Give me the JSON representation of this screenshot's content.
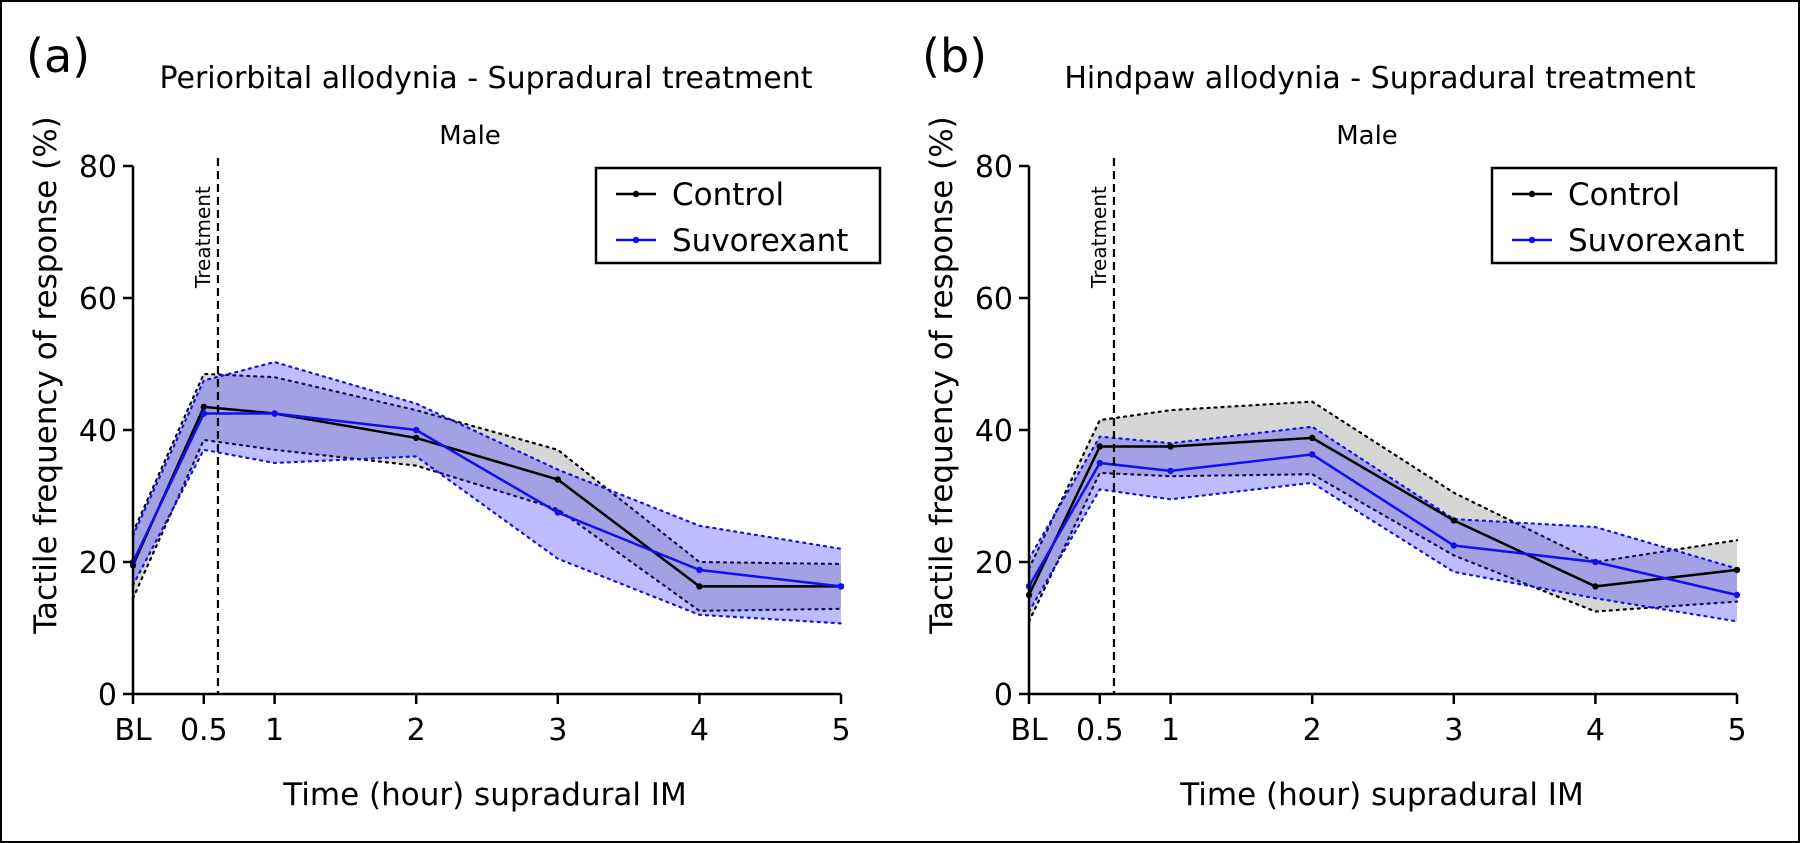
{
  "figure": {
    "border_color": "#000000"
  },
  "colors": {
    "control": "#000000",
    "suvorexant": "#1010f0",
    "control_band": "#7f7f7f",
    "suvorexant_band": "#3333ff"
  },
  "chart_data": [
    {
      "type": "line",
      "panel_label": "(a)",
      "title": "Periorbital allodynia - Supradural treatment",
      "subtitle": "Male",
      "xlabel": "Time (hour) supradural IM",
      "ylabel": "Tactile frequency of response (%)",
      "x": [
        0,
        0.5,
        1,
        2,
        3,
        4,
        5
      ],
      "xlim": [
        0,
        5
      ],
      "ylim": [
        0,
        80
      ],
      "x_ticks": [
        {
          "value": 0,
          "label": "BL"
        },
        {
          "value": 0.5,
          "label": "0.5"
        },
        {
          "value": 1,
          "label": "1"
        },
        {
          "value": 2,
          "label": "2"
        },
        {
          "value": 3,
          "label": "3"
        },
        {
          "value": 4,
          "label": "4"
        },
        {
          "value": 5,
          "label": "5"
        }
      ],
      "y_ticks": [
        0,
        20,
        40,
        60,
        80
      ],
      "treatment_x": 0.6,
      "treatment_label": "Treatment",
      "legend_position": "top-right",
      "series": [
        {
          "name": "Control",
          "key": "control",
          "values": [
            19.5,
            43.5,
            42.5,
            38.8,
            32.5,
            16.3,
            16.3
          ],
          "upper": [
            24.5,
            48.5,
            48.0,
            43.0,
            37.0,
            20.0,
            19.7
          ],
          "lower": [
            14.5,
            38.5,
            37.0,
            34.6,
            28.0,
            12.6,
            12.9
          ]
        },
        {
          "name": "Suvorexant",
          "key": "suvorexant",
          "values": [
            20.0,
            42.5,
            42.5,
            40.0,
            27.5,
            18.8,
            16.3
          ],
          "upper": [
            24.0,
            47.5,
            50.3,
            44.0,
            34.0,
            25.5,
            22.0
          ],
          "lower": [
            16.5,
            37.0,
            35.0,
            36.0,
            20.5,
            12.0,
            10.7
          ]
        }
      ]
    },
    {
      "type": "line",
      "panel_label": "(b)",
      "title": "Hindpaw allodynia - Supradural treatment",
      "subtitle": "Male",
      "xlabel": "Time (hour) supradural IM",
      "ylabel": "Tactile frequency of response (%)",
      "x": [
        0,
        0.5,
        1,
        2,
        3,
        4,
        5
      ],
      "xlim": [
        0,
        5
      ],
      "ylim": [
        0,
        80
      ],
      "x_ticks": [
        {
          "value": 0,
          "label": "BL"
        },
        {
          "value": 0.5,
          "label": "0.5"
        },
        {
          "value": 1,
          "label": "1"
        },
        {
          "value": 2,
          "label": "2"
        },
        {
          "value": 3,
          "label": "3"
        },
        {
          "value": 4,
          "label": "4"
        },
        {
          "value": 5,
          "label": "5"
        }
      ],
      "y_ticks": [
        0,
        20,
        40,
        60,
        80
      ],
      "treatment_x": 0.6,
      "treatment_label": "Treatment",
      "legend_position": "top-right",
      "series": [
        {
          "name": "Control",
          "key": "control",
          "values": [
            15.0,
            37.5,
            37.5,
            38.8,
            26.3,
            16.3,
            18.8
          ],
          "upper": [
            19.0,
            41.5,
            43.0,
            44.3,
            30.5,
            20.0,
            23.3
          ],
          "lower": [
            11.0,
            33.5,
            33.0,
            33.3,
            21.0,
            12.5,
            14.0
          ]
        },
        {
          "name": "Suvorexant",
          "key": "suvorexant",
          "values": [
            16.3,
            35.0,
            33.8,
            36.3,
            22.5,
            20.0,
            15.0
          ],
          "upper": [
            20.5,
            39.0,
            38.0,
            40.5,
            26.5,
            25.3,
            19.0
          ],
          "lower": [
            12.5,
            31.0,
            29.5,
            32.0,
            18.5,
            14.5,
            11.0
          ]
        }
      ]
    }
  ]
}
